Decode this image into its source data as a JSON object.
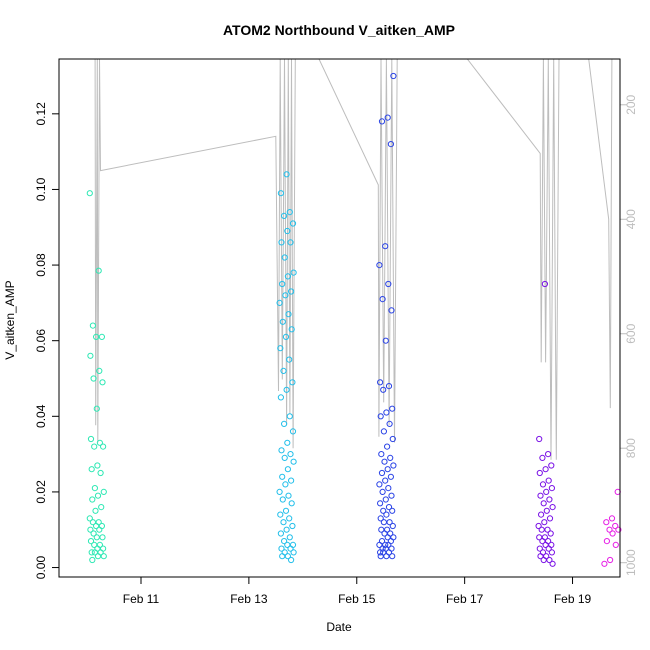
{
  "chart_data": {
    "type": "scatter",
    "title": "ATOM2 Northbound V_aitken_AMP",
    "xlabel": "Date",
    "ylabel": "V_aitken_AMP",
    "x_unit": "days since Feb 1",
    "xlim": [
      9.48,
      19.88
    ],
    "ylim": [
      -0.0025,
      0.1345
    ],
    "x_ticks": [
      {
        "value": 11,
        "label": "Feb 11"
      },
      {
        "value": 13,
        "label": "Feb 13"
      },
      {
        "value": 15,
        "label": "Feb 15"
      },
      {
        "value": 17,
        "label": "Feb 17"
      },
      {
        "value": 19,
        "label": "Feb 19"
      }
    ],
    "y_ticks": [
      {
        "value": 0.0,
        "label": "0.00"
      },
      {
        "value": 0.02,
        "label": "0.02"
      },
      {
        "value": 0.04,
        "label": "0.04"
      },
      {
        "value": 0.06,
        "label": "0.06"
      },
      {
        "value": 0.08,
        "label": "0.08"
      },
      {
        "value": 0.1,
        "label": "0.10"
      },
      {
        "value": 0.12,
        "label": "0.12"
      }
    ],
    "y2_ticks": [
      {
        "value": 200,
        "label": "200"
      },
      {
        "value": 400,
        "label": "400"
      },
      {
        "value": 600,
        "label": "600"
      },
      {
        "value": 800,
        "label": "800"
      },
      {
        "value": 1000,
        "label": "1000"
      }
    ],
    "y2_range_top_to_bottom": [
      120,
      1025
    ],
    "grid": false,
    "marker": "open circle",
    "color_scale": "rainbow by date",
    "series": [
      {
        "x": 10.18,
        "color": "#2ee8b4",
        "values": [
          0.099,
          0.0785,
          0.064,
          0.061,
          0.061,
          0.056,
          0.052,
          0.05,
          0.049,
          0.042,
          0.034,
          0.033,
          0.032,
          0.032,
          0.027,
          0.026,
          0.025,
          0.021,
          0.02,
          0.019,
          0.018,
          0.016,
          0.015,
          0.013,
          0.012,
          0.012,
          0.011,
          0.011,
          0.01,
          0.01,
          0.009,
          0.008,
          0.008,
          0.007,
          0.006,
          0.006,
          0.005,
          0.005,
          0.004,
          0.004,
          0.004,
          0.003,
          0.003,
          0.002
        ]
      },
      {
        "x": 13.7,
        "color": "#22bfea",
        "values": [
          0.104,
          0.099,
          0.094,
          0.093,
          0.091,
          0.089,
          0.086,
          0.086,
          0.082,
          0.078,
          0.077,
          0.075,
          0.073,
          0.072,
          0.07,
          0.067,
          0.065,
          0.063,
          0.061,
          0.058,
          0.055,
          0.052,
          0.049,
          0.047,
          0.045,
          0.04,
          0.038,
          0.036,
          0.033,
          0.031,
          0.03,
          0.029,
          0.028,
          0.026,
          0.024,
          0.023,
          0.022,
          0.02,
          0.019,
          0.018,
          0.017,
          0.015,
          0.014,
          0.013,
          0.012,
          0.011,
          0.01,
          0.009,
          0.008,
          0.007,
          0.006,
          0.006,
          0.005,
          0.005,
          0.004,
          0.004,
          0.003,
          0.003,
          0.002
        ]
      },
      {
        "x": 15.55,
        "color": "#2b44e6",
        "values": [
          0.13,
          0.119,
          0.118,
          0.112,
          0.085,
          0.08,
          0.075,
          0.071,
          0.068,
          0.06,
          0.049,
          0.048,
          0.047,
          0.042,
          0.041,
          0.04,
          0.038,
          0.036,
          0.034,
          0.032,
          0.03,
          0.029,
          0.028,
          0.027,
          0.026,
          0.025,
          0.024,
          0.023,
          0.022,
          0.021,
          0.02,
          0.019,
          0.018,
          0.017,
          0.016,
          0.015,
          0.015,
          0.014,
          0.013,
          0.012,
          0.012,
          0.011,
          0.01,
          0.01,
          0.009,
          0.009,
          0.008,
          0.008,
          0.007,
          0.007,
          0.006,
          0.006,
          0.006,
          0.005,
          0.005,
          0.005,
          0.004,
          0.004,
          0.004,
          0.003,
          0.003,
          0.003
        ]
      },
      {
        "x": 18.5,
        "color": "#7a12e6",
        "values": [
          0.075,
          0.034,
          0.03,
          0.029,
          0.027,
          0.026,
          0.025,
          0.023,
          0.022,
          0.021,
          0.02,
          0.019,
          0.018,
          0.017,
          0.016,
          0.015,
          0.014,
          0.013,
          0.012,
          0.011,
          0.01,
          0.01,
          0.009,
          0.008,
          0.008,
          0.007,
          0.007,
          0.006,
          0.006,
          0.005,
          0.005,
          0.004,
          0.004,
          0.003,
          0.003,
          0.002,
          0.002,
          0.001
        ]
      },
      {
        "x": 19.72,
        "color": "#e61fe6",
        "values": [
          0.02,
          0.013,
          0.012,
          0.011,
          0.01,
          0.01,
          0.009,
          0.007,
          0.006,
          0.002,
          0.001
        ]
      }
    ],
    "overlay_line": {
      "color": "#bdbdbd",
      "axis": "right"
    }
  }
}
